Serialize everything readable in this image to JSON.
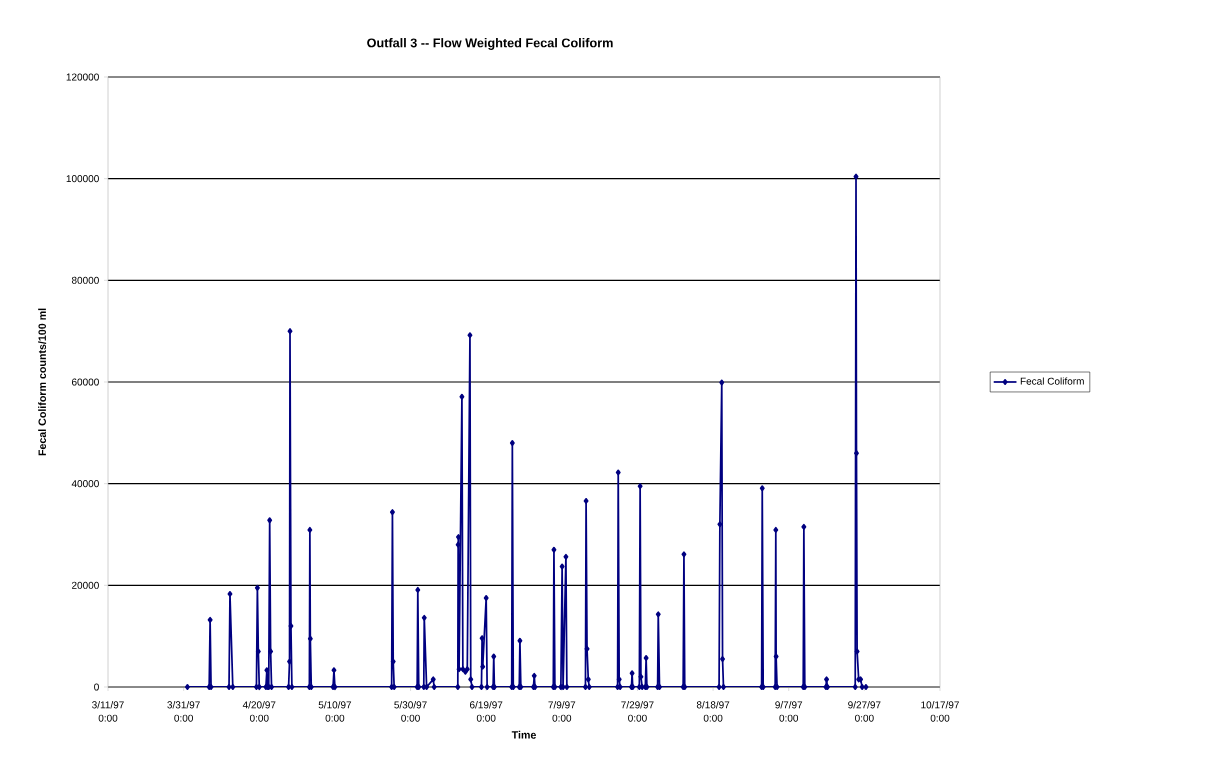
{
  "chart_data": {
    "type": "line",
    "title": "Outfall 3 -- Flow Weighted Fecal Coliform",
    "xlabel": "Time",
    "ylabel": "Fecal Coliform counts/100 ml",
    "xlim": [
      "1997-03-11",
      "1997-10-17"
    ],
    "xticks": [
      {
        "value": "1997-03-11",
        "label": "3/11/97 0:00"
      },
      {
        "value": "1997-03-31",
        "label": "3/31/97 0:00"
      },
      {
        "value": "1997-04-20",
        "label": "4/20/97 0:00"
      },
      {
        "value": "1997-05-10",
        "label": "5/10/97 0:00"
      },
      {
        "value": "1997-05-30",
        "label": "5/30/97 0:00"
      },
      {
        "value": "1997-06-19",
        "label": "6/19/97 0:00"
      },
      {
        "value": "1997-07-09",
        "label": "7/9/97 0:00"
      },
      {
        "value": "1997-07-29",
        "label": "7/29/97 0:00"
      },
      {
        "value": "1997-08-18",
        "label": "8/18/97 0:00"
      },
      {
        "value": "1997-09-07",
        "label": "9/7/97 0:00"
      },
      {
        "value": "1997-09-27",
        "label": "9/27/97 0:00"
      },
      {
        "value": "1997-10-17",
        "label": "10/17/97 0:00"
      }
    ],
    "ylim": [
      0,
      120000
    ],
    "yticks": [
      0,
      20000,
      40000,
      60000,
      80000,
      100000,
      120000
    ],
    "grid": "y",
    "legend": "right",
    "marker": "diamond",
    "line_style": "solid",
    "series": [
      {
        "name": "Fecal Coliform",
        "color": "#000080",
        "x": [
          "1997-04-01T00:00",
          "1997-04-06T18:00",
          "1997-04-07T00:00",
          "1997-04-07T06:00",
          "1997-04-12T00:00",
          "1997-04-12T06:00",
          "1997-04-13T00:00",
          "1997-04-19T06:00",
          "1997-04-19T12:00",
          "1997-04-19T18:00",
          "1997-04-20T00:00",
          "1997-04-21T18:00",
          "1997-04-22T00:00",
          "1997-04-22T06:00",
          "1997-04-22T12:00",
          "1997-04-22T18:00",
          "1997-04-23T00:00",
          "1997-04-23T06:00",
          "1997-04-27T18:00",
          "1997-04-28T00:00",
          "1997-04-28T03:00",
          "1997-04-28T09:00",
          "1997-04-28T15:00",
          "1997-05-03T06:00",
          "1997-05-03T09:00",
          "1997-05-03T12:00",
          "1997-05-03T18:00",
          "1997-05-09T12:00",
          "1997-05-09T18:00",
          "1997-05-10T00:00",
          "1997-05-25T00:00",
          "1997-05-25T05:00",
          "1997-05-25T10:00",
          "1997-05-25T16:00",
          "1997-05-31T18:00",
          "1997-05-31T22:00",
          "1997-06-01T04:00",
          "1997-06-02T12:00",
          "1997-06-02T15:00",
          "1997-06-03T06:00",
          "1997-06-05T00:00",
          "1997-06-05T06:00",
          "1997-06-11T12:00",
          "1997-06-11T14:00",
          "1997-06-11T16:00",
          "1997-06-11T20:00",
          "1997-06-12T14:00",
          "1997-06-12T20:00",
          "1997-06-13T12:00",
          "1997-06-14T00:00",
          "1997-06-14T17:00",
          "1997-06-14T22:00",
          "1997-06-15T06:00",
          "1997-06-17T18:00",
          "1997-06-17T22:00",
          "1997-06-18T02:00",
          "1997-06-19T00:00",
          "1997-06-19T06:00",
          "1997-06-20T20:00",
          "1997-06-21T00:00",
          "1997-06-21T04:00",
          "1997-06-25T18:00",
          "1997-06-25T22:00",
          "1997-06-26T04:00",
          "1997-06-27T18:00",
          "1997-06-27T22:00",
          "1997-06-28T04:00",
          "1997-07-01T12:00",
          "1997-07-01T17:00",
          "1997-07-01T22:00",
          "1997-07-06T18:00",
          "1997-07-06T22:00",
          "1997-07-07T04:00",
          "1997-07-08T18:00",
          "1997-07-09T02:00",
          "1997-07-09T08:00",
          "1997-07-10T02:00",
          "1997-07-10T08:00",
          "1997-07-15T06:00",
          "1997-07-15T10:00",
          "1997-07-15T16:00",
          "1997-07-16T00:00",
          "1997-07-16T06:00",
          "1997-07-23T18:00",
          "1997-07-23T22:00",
          "1997-07-24T04:00",
          "1997-07-24T10:00",
          "1997-07-27T10:00",
          "1997-07-27T14:00",
          "1997-07-27T18:00",
          "1997-07-29T12:00",
          "1997-07-29T17:00",
          "1997-07-29T22:00",
          "1997-07-30T06:00",
          "1997-07-31T02:00",
          "1997-07-31T07:00",
          "1997-07-31T12:00",
          "1997-08-03T08:00",
          "1997-08-03T12:00",
          "1997-08-03T20:00",
          "1997-08-10T02:00",
          "1997-08-10T07:00",
          "1997-08-10T12:00",
          "1997-08-19T14:00",
          "1997-08-19T19:00",
          "1997-08-20T07:00",
          "1997-08-20T12:00",
          "1997-08-20T18:00",
          "1997-08-30T20:00",
          "1997-08-31T00:00",
          "1997-08-31T06:00",
          "1997-09-03T10:00",
          "1997-09-03T14:00",
          "1997-09-03T16:00",
          "1997-09-03T22:00",
          "1997-09-10T20:00",
          "1997-09-11T00:00",
          "1997-09-11T06:00",
          "1997-09-16T20:00",
          "1997-09-17T00:00",
          "1997-09-17T06:00",
          "1997-09-24T14:00",
          "1997-09-24T19:00",
          "1997-09-24T22:00",
          "1997-09-25T02:00",
          "1997-09-25T12:00",
          "1997-09-26T00:00",
          "1997-09-26T10:00",
          "1997-09-27T10:00"
        ],
        "values": [
          0,
          0,
          13200,
          0,
          0,
          18300,
          0,
          0,
          19500,
          7000,
          0,
          0,
          3300,
          0,
          0,
          32800,
          7000,
          0,
          0,
          5000,
          70000,
          12000,
          0,
          0,
          30900,
          9500,
          0,
          0,
          3300,
          0,
          0,
          34400,
          5000,
          0,
          0,
          19100,
          0,
          0,
          13600,
          0,
          1500,
          0,
          0,
          28000,
          29500,
          3500,
          57100,
          3500,
          3000,
          3500,
          69200,
          1500,
          0,
          0,
          9600,
          4000,
          17500,
          0,
          0,
          6000,
          0,
          0,
          48000,
          0,
          0,
          9100,
          0,
          0,
          2200,
          0,
          0,
          27000,
          0,
          0,
          23700,
          0,
          25600,
          0,
          0,
          36600,
          7500,
          1500,
          0,
          0,
          42200,
          1500,
          0,
          0,
          2700,
          0,
          0,
          39500,
          2000,
          0,
          0,
          5700,
          0,
          0,
          14300,
          0,
          0,
          26100,
          0,
          0,
          32000,
          59900,
          5500,
          0,
          0,
          39100,
          0,
          0,
          30900,
          6000,
          0,
          0,
          31500,
          0,
          0,
          1500,
          0,
          0,
          100400,
          46000,
          7000,
          1500,
          1500,
          0,
          0
        ]
      }
    ]
  }
}
